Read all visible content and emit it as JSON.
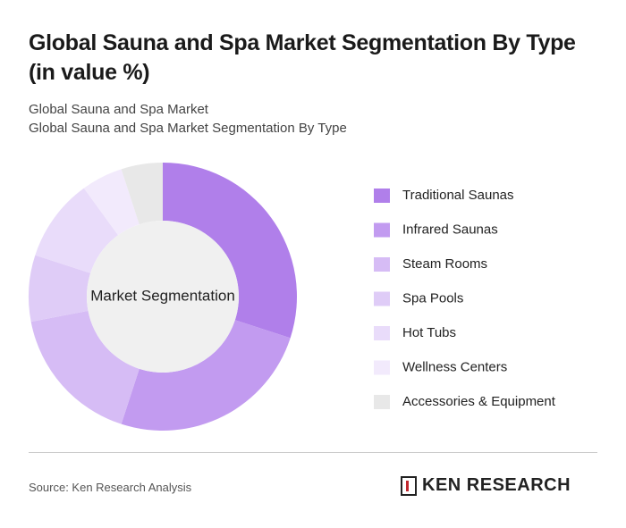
{
  "chart_data": {
    "type": "donut",
    "title": "Global Sauna and Spa Market Segmentation By Type (in value %)",
    "subtitles": [
      "Global Sauna and Spa Market",
      "Global Sauna and Spa Market Segmentation By Type"
    ],
    "center_label": "Market Segmentation",
    "categories": [
      "Traditional Saunas",
      "Infrared Saunas",
      "Steam Rooms",
      "Spa Pools",
      "Hot Tubs",
      "Wellness Centers",
      "Accessories & Equipment"
    ],
    "values": [
      30,
      25,
      17,
      8,
      10,
      5,
      5
    ],
    "colors": [
      "#b07fea",
      "#c29bf0",
      "#d6bcf5",
      "#dfccf7",
      "#e9dcfa",
      "#f2eafc",
      "#e8e8e8"
    ],
    "source": "Source: Ken Research Analysis",
    "logo": "KEN RESEARCH"
  }
}
